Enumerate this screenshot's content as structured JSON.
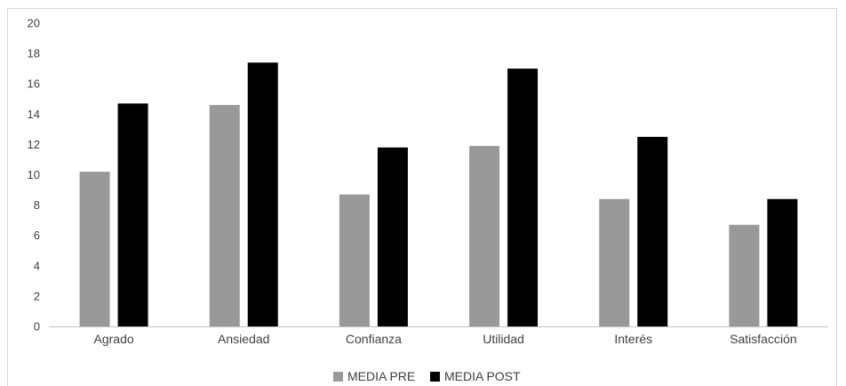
{
  "chart_data": {
    "type": "bar",
    "categories": [
      "Agrado",
      "Ansiedad",
      "Confianza",
      "Utilidad",
      "Interés",
      "Satisfacción"
    ],
    "series": [
      {
        "name": "MEDIA PRE",
        "color": "#999999",
        "values": [
          10.2,
          14.6,
          8.7,
          11.9,
          8.4,
          6.7
        ]
      },
      {
        "name": "MEDIA POST",
        "color": "#000000",
        "values": [
          14.7,
          17.4,
          11.8,
          17.0,
          12.5,
          8.4
        ]
      }
    ],
    "ylim": [
      0,
      20
    ],
    "yticks": [
      0,
      2,
      4,
      6,
      8,
      10,
      12,
      14,
      16,
      18,
      20
    ],
    "grid": false,
    "legend_position": "bottom",
    "title": "",
    "xlabel": "",
    "ylabel": ""
  }
}
